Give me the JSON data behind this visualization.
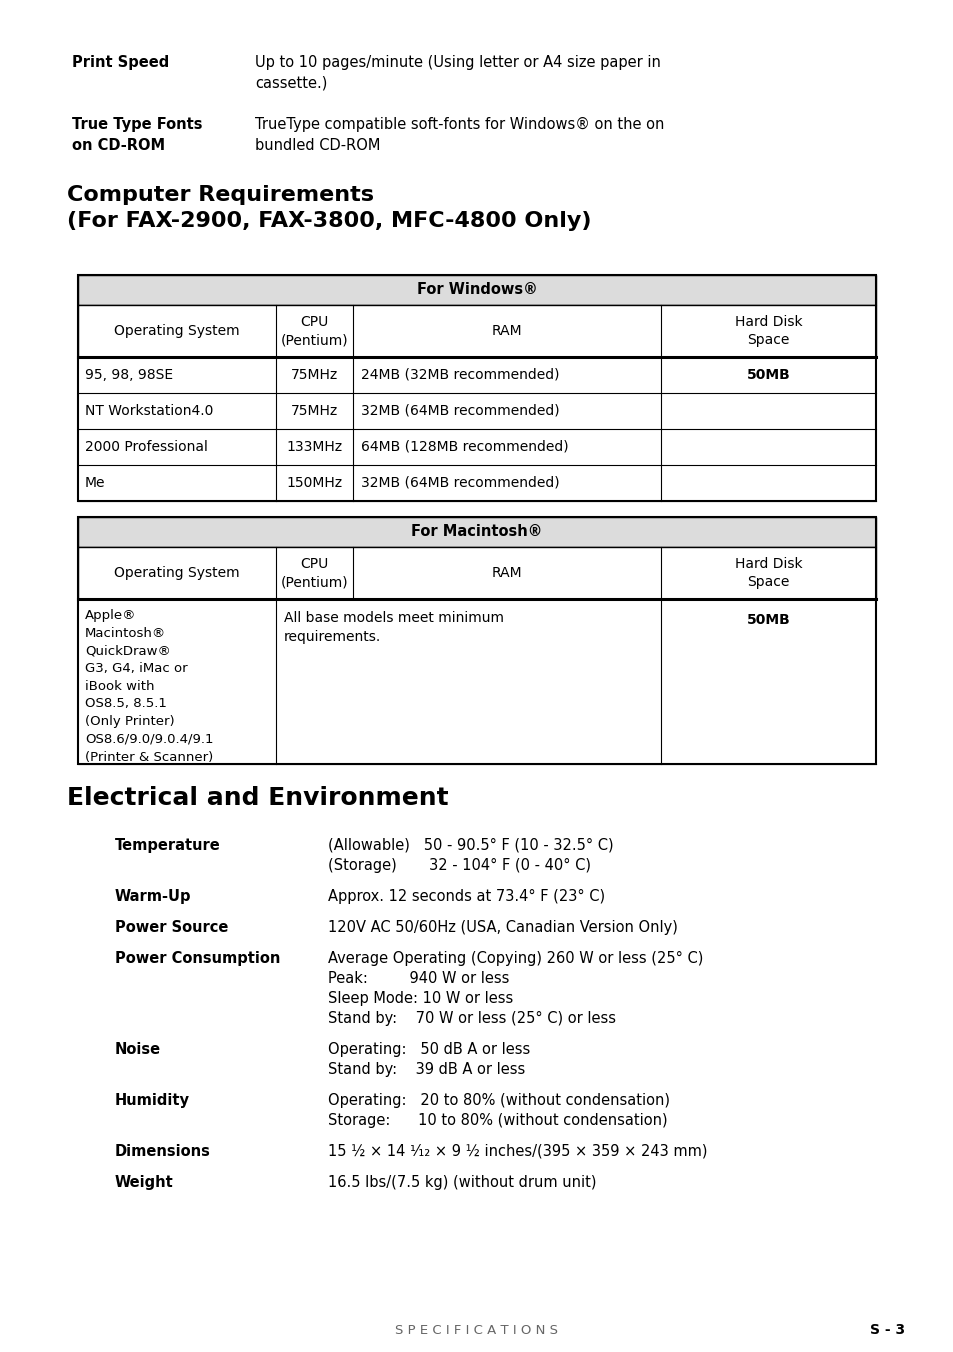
{
  "bg_color": "#ffffff",
  "print_speed_label": "Print Speed",
  "print_speed_value": "Up to 10 pages/minute (Using letter or A4 size paper in\ncassette.)",
  "truetype_label": "True Type Fonts\non CD-ROM",
  "truetype_value": "TrueType compatible soft-fonts for Windows® on the on\nbundled CD-ROM",
  "comp_req_title": "Computer Requirements\n(For FAX-2900, FAX-3800, MFC-4800 Only)",
  "win_header": "For Windows®",
  "mac_header": "For Macintosh®",
  "col_headers": [
    "Operating System",
    "CPU\n(Pentium)",
    "RAM",
    "Hard Disk\nSpace"
  ],
  "win_rows": [
    [
      "95, 98, 98SE",
      "75MHz",
      "24MB (32MB recommended)",
      "50MB"
    ],
    [
      "NT Workstation4.0",
      "75MHz",
      "32MB (64MB recommended)",
      ""
    ],
    [
      "2000 Professional",
      "133MHz",
      "64MB (128MB recommended)",
      ""
    ],
    [
      "Me",
      "150MHz",
      "32MB (64MB recommended)",
      ""
    ]
  ],
  "mac_os_text": "Apple®\nMacintosh®\nQuickDraw®\nG3, G4, iMac or\niBook with\nOS8.5, 8.5.1\n(Only Printer)\nOS8.6/9.0/9.0.4/9.1\n(Printer & Scanner)",
  "mac_ram_text": "All base models meet minimum\nrequirements.",
  "mac_hd_text": "50MB",
  "elec_title": "Electrical and Environment",
  "elec_items": [
    {
      "label": "Temperature",
      "value": "(Allowable)   50 - 90.5° F (10 - 32.5° C)\n(Storage)       32 - 104° F (0 - 40° C)"
    },
    {
      "label": "Warm-Up",
      "value": "Approx. 12 seconds at 73.4° F (23° C)"
    },
    {
      "label": "Power Source",
      "value": "120V AC 50/60Hz (USA, Canadian Version Only)"
    },
    {
      "label": "Power Consumption",
      "value": "Average Operating (Copying) 260 W or less (25° C)\nPeak:         940 W or less\nSleep Mode: 10 W or less\nStand by:    70 W or less (25° C) or less"
    },
    {
      "label": "Noise",
      "value": "Operating:   50 dB A or less\nStand by:    39 dB A or less"
    },
    {
      "label": "Humidity",
      "value": "Operating:   20 to 80% (without condensation)\nStorage:      10 to 80% (without condensation)"
    },
    {
      "label": "Dimensions",
      "value": "15 ½ × 14 ¹⁄₁₂ × 9 ½ inches/(395 × 359 × 243 mm)"
    },
    {
      "label": "Weight",
      "value": "16.5 lbs/(7.5 kg) (without drum unit)"
    }
  ],
  "footer_left": "S P E C I F I C A T I O N S",
  "footer_right": "S - 3"
}
